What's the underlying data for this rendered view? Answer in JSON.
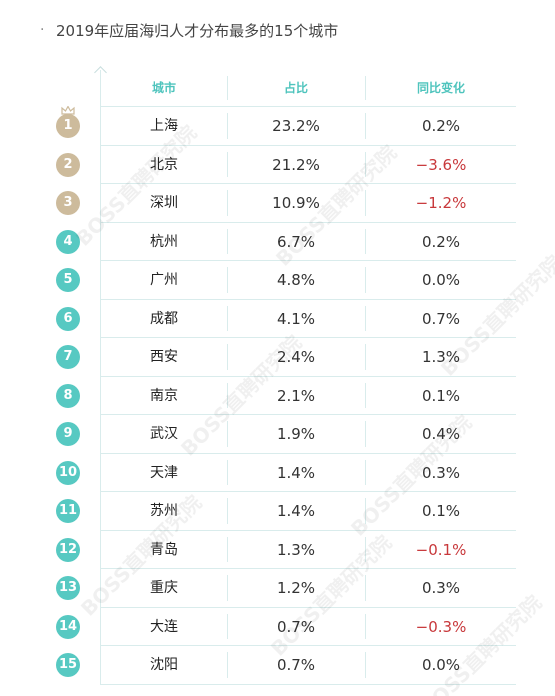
{
  "title": "2019年应届海归人才分布最多的15个城市",
  "watermark": "BOSS直聘研究院",
  "colors": {
    "accent": "#4fc4bd",
    "gold_badge": "#cdbb9c",
    "teal_badge": "#57c9c2",
    "negative": "#c8383b"
  },
  "chart_data": {
    "type": "table",
    "title": "2019年应届海归人才分布最多的15个城市",
    "columns": [
      "城市",
      "占比",
      "同比变化"
    ],
    "rows": [
      {
        "rank": "1",
        "city": "上海",
        "share": "23.2%",
        "change": "0.2%",
        "negative": false
      },
      {
        "rank": "2",
        "city": "北京",
        "share": "21.2%",
        "change": "−3.6%",
        "negative": true
      },
      {
        "rank": "3",
        "city": "深圳",
        "share": "10.9%",
        "change": "−1.2%",
        "negative": true
      },
      {
        "rank": "4",
        "city": "杭州",
        "share": "6.7%",
        "change": "0.2%",
        "negative": false
      },
      {
        "rank": "5",
        "city": "广州",
        "share": "4.8%",
        "change": "0.0%",
        "negative": false
      },
      {
        "rank": "6",
        "city": "成都",
        "share": "4.1%",
        "change": "0.7%",
        "negative": false
      },
      {
        "rank": "7",
        "city": "西安",
        "share": "2.4%",
        "change": "1.3%",
        "negative": false
      },
      {
        "rank": "8",
        "city": "南京",
        "share": "2.1%",
        "change": "0.1%",
        "negative": false
      },
      {
        "rank": "9",
        "city": "武汉",
        "share": "1.9%",
        "change": "0.4%",
        "negative": false
      },
      {
        "rank": "10",
        "city": "天津",
        "share": "1.4%",
        "change": "0.3%",
        "negative": false
      },
      {
        "rank": "11",
        "city": "苏州",
        "share": "1.4%",
        "change": "0.1%",
        "negative": false
      },
      {
        "rank": "12",
        "city": "青岛",
        "share": "1.3%",
        "change": "−0.1%",
        "negative": true
      },
      {
        "rank": "13",
        "city": "重庆",
        "share": "1.2%",
        "change": "0.3%",
        "negative": false
      },
      {
        "rank": "14",
        "city": "大连",
        "share": "0.7%",
        "change": "−0.3%",
        "negative": true
      },
      {
        "rank": "15",
        "city": "沈阳",
        "share": "0.7%",
        "change": "0.0%",
        "negative": false
      }
    ]
  }
}
